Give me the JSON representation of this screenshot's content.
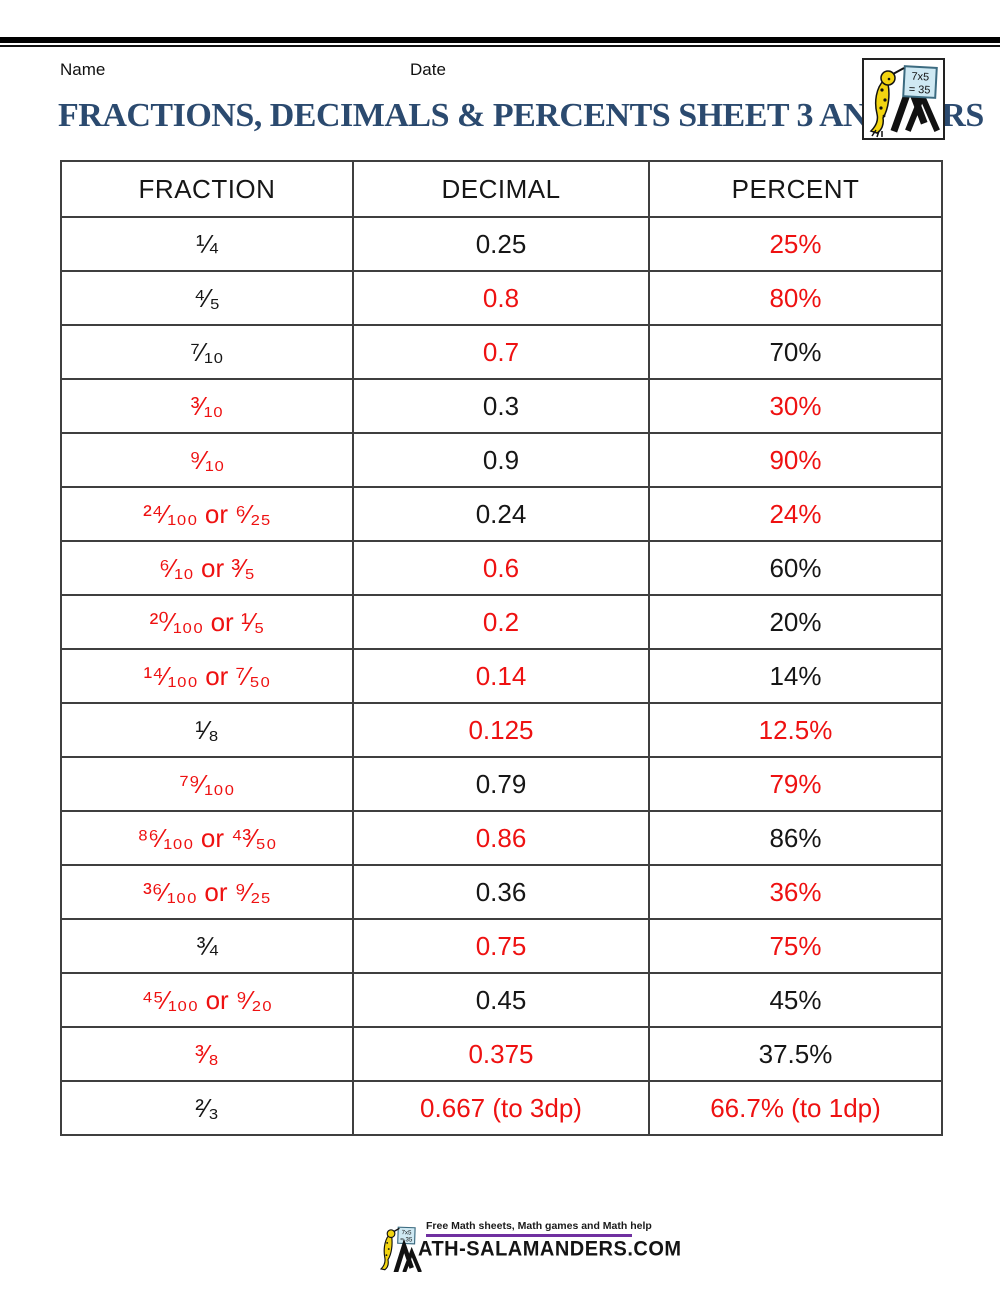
{
  "page": {
    "name_label": "Name",
    "date_label": "Date",
    "title": "FRACTIONS, DECIMALS & PERCENTS SHEET 3 ANSWERS"
  },
  "logo": {
    "sign_line1": "7x5",
    "sign_line2": "= 35"
  },
  "table": {
    "headers": [
      "FRACTION",
      "DECIMAL",
      "PERCENT"
    ],
    "rows": [
      {
        "fraction": {
          "text": "¼",
          "color": "black"
        },
        "decimal": {
          "text": "0.25",
          "color": "black"
        },
        "percent": {
          "text": "25%",
          "color": "red"
        }
      },
      {
        "fraction": {
          "text": "⁴⁄₅",
          "color": "black"
        },
        "decimal": {
          "text": "0.8",
          "color": "red"
        },
        "percent": {
          "text": "80%",
          "color": "red"
        }
      },
      {
        "fraction": {
          "text": "⁷⁄₁₀",
          "color": "black"
        },
        "decimal": {
          "text": "0.7",
          "color": "red"
        },
        "percent": {
          "text": "70%",
          "color": "black"
        }
      },
      {
        "fraction": {
          "text": "³⁄₁₀",
          "color": "red"
        },
        "decimal": {
          "text": "0.3",
          "color": "black"
        },
        "percent": {
          "text": "30%",
          "color": "red"
        }
      },
      {
        "fraction": {
          "text": "⁹⁄₁₀",
          "color": "red"
        },
        "decimal": {
          "text": "0.9",
          "color": "black"
        },
        "percent": {
          "text": "90%",
          "color": "red"
        }
      },
      {
        "fraction": {
          "text": "²⁴⁄₁₀₀ or ⁶⁄₂₅",
          "color": "red"
        },
        "decimal": {
          "text": "0.24",
          "color": "black"
        },
        "percent": {
          "text": "24%",
          "color": "red"
        }
      },
      {
        "fraction": {
          "text": "⁶⁄₁₀ or ³⁄₅",
          "color": "red"
        },
        "decimal": {
          "text": "0.6",
          "color": "red"
        },
        "percent": {
          "text": "60%",
          "color": "black"
        }
      },
      {
        "fraction": {
          "text": "²⁰⁄₁₀₀ or ¹⁄₅",
          "color": "red"
        },
        "decimal": {
          "text": "0.2",
          "color": "red"
        },
        "percent": {
          "text": "20%",
          "color": "black"
        }
      },
      {
        "fraction": {
          "text": "¹⁴⁄₁₀₀ or ⁷⁄₅₀",
          "color": "red"
        },
        "decimal": {
          "text": "0.14",
          "color": "red"
        },
        "percent": {
          "text": "14%",
          "color": "black"
        }
      },
      {
        "fraction": {
          "text": "¹⁄₈",
          "color": "black"
        },
        "decimal": {
          "text": "0.125",
          "color": "red"
        },
        "percent": {
          "text": "12.5%",
          "color": "red"
        }
      },
      {
        "fraction": {
          "text": "⁷⁹⁄₁₀₀",
          "color": "red"
        },
        "decimal": {
          "text": "0.79",
          "color": "black"
        },
        "percent": {
          "text": "79%",
          "color": "red"
        }
      },
      {
        "fraction": {
          "text": "⁸⁶⁄₁₀₀ or ⁴³⁄₅₀",
          "color": "red"
        },
        "decimal": {
          "text": "0.86",
          "color": "red"
        },
        "percent": {
          "text": "86%",
          "color": "black"
        }
      },
      {
        "fraction": {
          "text": "³⁶⁄₁₀₀ or ⁹⁄₂₅",
          "color": "red"
        },
        "decimal": {
          "text": "0.36",
          "color": "black"
        },
        "percent": {
          "text": "36%",
          "color": "red"
        }
      },
      {
        "fraction": {
          "text": "¾",
          "color": "black"
        },
        "decimal": {
          "text": "0.75",
          "color": "red"
        },
        "percent": {
          "text": "75%",
          "color": "red"
        }
      },
      {
        "fraction": {
          "text": "⁴⁵⁄₁₀₀ or ⁹⁄₂₀",
          "color": "red"
        },
        "decimal": {
          "text": "0.45",
          "color": "black"
        },
        "percent": {
          "text": "45%",
          "color": "black"
        }
      },
      {
        "fraction": {
          "text": "³⁄₈",
          "color": "red"
        },
        "decimal": {
          "text": "0.375",
          "color": "red"
        },
        "percent": {
          "text": "37.5%",
          "color": "black"
        }
      },
      {
        "fraction": {
          "text": "²⁄₃",
          "color": "black"
        },
        "decimal": {
          "text": "0.667 (to 3dp)",
          "color": "red"
        },
        "percent": {
          "text": "66.7% (to 1dp)",
          "color": "red"
        }
      }
    ]
  },
  "footer": {
    "tagline": "Free Math sheets, Math games and Math help",
    "wordmark": "ATH-SALAMANDERS.COM"
  },
  "colors": {
    "answer_red": "#ee1111",
    "title_navy": "#2b4a6f",
    "rule_purple": "#7030a0",
    "salamander_yellow": "#f2d410",
    "sign_blue": "#cfe9f3"
  }
}
